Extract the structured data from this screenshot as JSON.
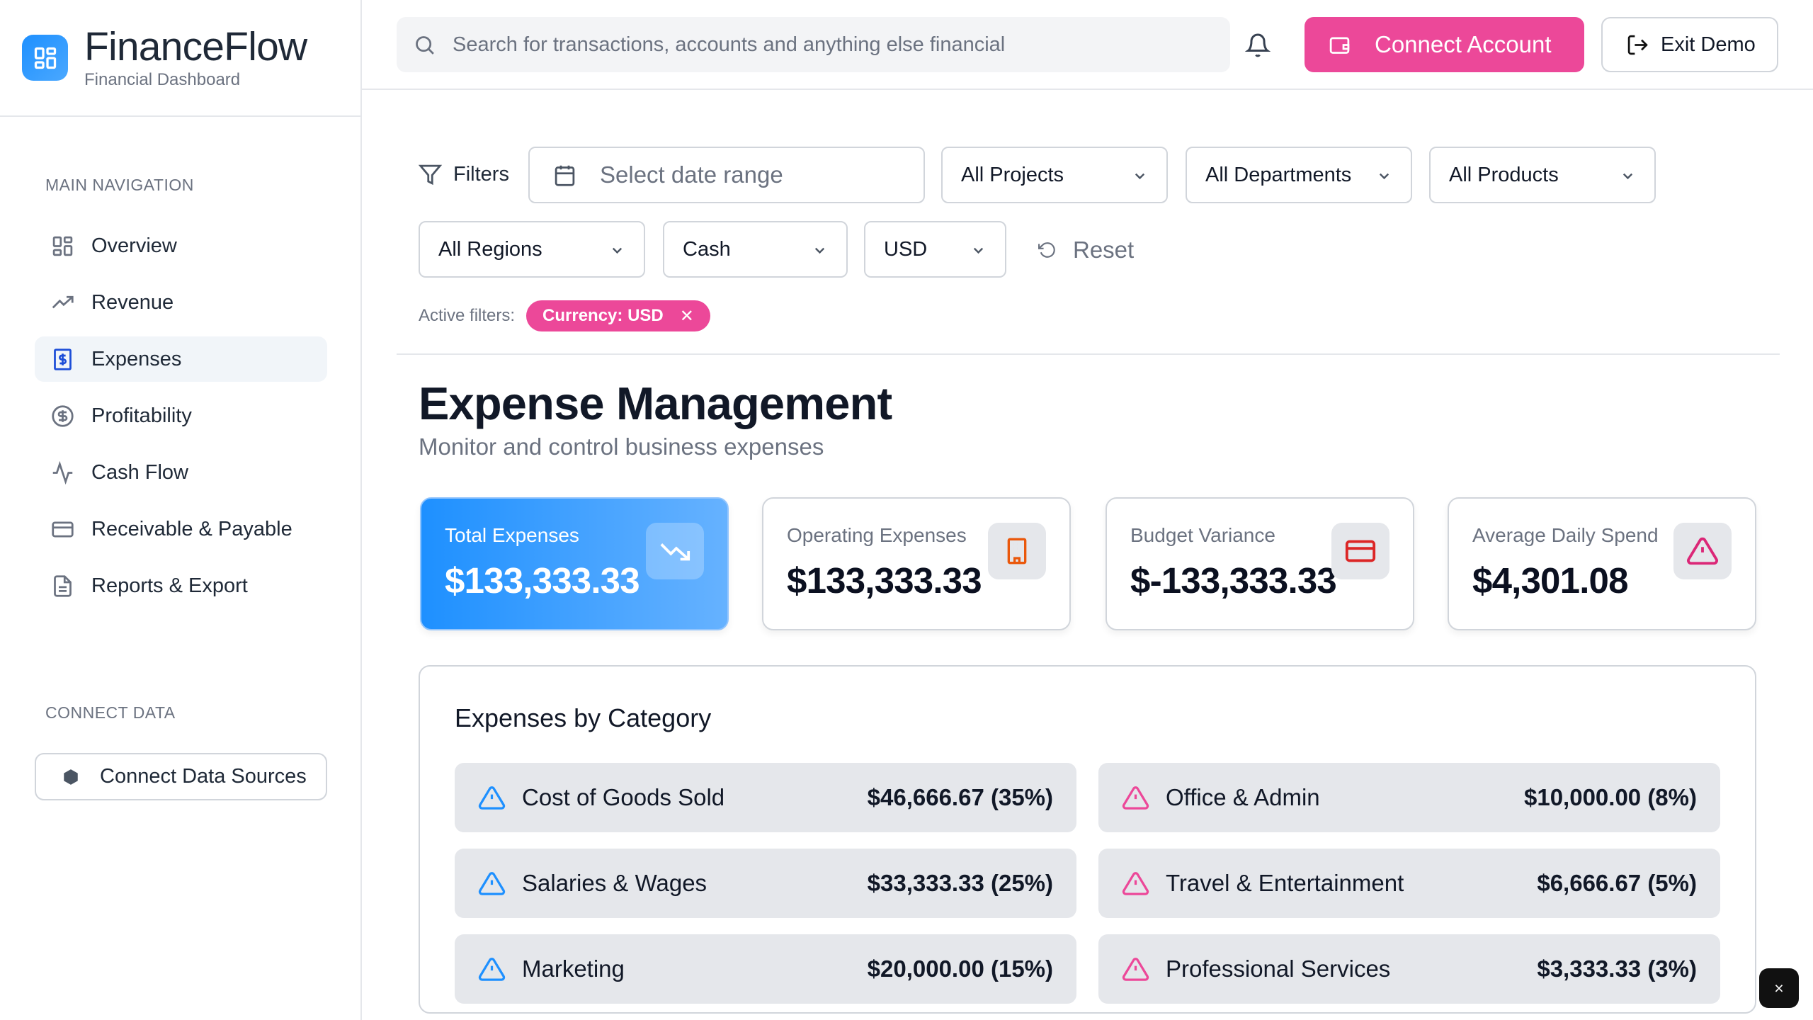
{
  "brand": {
    "title": "FinanceFlow",
    "subtitle": "Financial Dashboard"
  },
  "sidebar": {
    "main_label": "MAIN NAVIGATION",
    "items": [
      {
        "label": "Overview",
        "icon": "grid-icon"
      },
      {
        "label": "Revenue",
        "icon": "trending-up-icon"
      },
      {
        "label": "Expenses",
        "icon": "receipt-dollar-icon",
        "active": true
      },
      {
        "label": "Profitability",
        "icon": "circle-dollar-icon"
      },
      {
        "label": "Cash Flow",
        "icon": "activity-icon"
      },
      {
        "label": "Receivable & Payable",
        "icon": "credit-card-icon"
      },
      {
        "label": "Reports & Export",
        "icon": "file-text-icon"
      }
    ],
    "connect_label": "CONNECT DATA",
    "connect_button": "Connect Data Sources"
  },
  "topbar": {
    "search_placeholder": "Search for transactions, accounts and anything else financial",
    "connect_account": "Connect Account",
    "exit_demo": "Exit Demo"
  },
  "filters": {
    "label": "Filters",
    "date_placeholder": "Select date range",
    "projects": "All Projects",
    "departments": "All Departments",
    "products": "All Products",
    "regions": "All Regions",
    "basis": "Cash",
    "currency": "USD",
    "reset": "Reset",
    "active_label": "Active filters:",
    "active_chip": "Currency: USD"
  },
  "page": {
    "title": "Expense Management",
    "subtitle": "Monitor and control business expenses"
  },
  "kpis": [
    {
      "label": "Total Expenses",
      "value": "$133,333.33",
      "icon": "trending-down-icon"
    },
    {
      "label": "Operating Expenses",
      "value": "$133,333.33",
      "icon": "building-icon",
      "color": "#ea580c"
    },
    {
      "label": "Budget Variance",
      "value": "$-133,333.33",
      "icon": "credit-card-icon",
      "color": "#dc2626"
    },
    {
      "label": "Average Daily Spend",
      "value": "$4,301.08",
      "icon": "alert-triangle-icon",
      "color": "#db2777"
    }
  ],
  "categories": {
    "title": "Expenses by Category",
    "items": [
      {
        "name": "Cost of Goods Sold",
        "amount": "$46,666.67 (35%)",
        "color": "#1e90ff"
      },
      {
        "name": "Office & Admin",
        "amount": "$10,000.00 (8%)",
        "color": "#ec4899"
      },
      {
        "name": "Salaries & Wages",
        "amount": "$33,333.33 (25%)",
        "color": "#1e90ff"
      },
      {
        "name": "Travel & Entertainment",
        "amount": "$6,666.67 (5%)",
        "color": "#ec4899"
      },
      {
        "name": "Marketing",
        "amount": "$20,000.00 (15%)",
        "color": "#1e90ff"
      },
      {
        "name": "Professional Services",
        "amount": "$3,333.33 (3%)",
        "color": "#ec4899"
      }
    ]
  },
  "close_label": "×"
}
